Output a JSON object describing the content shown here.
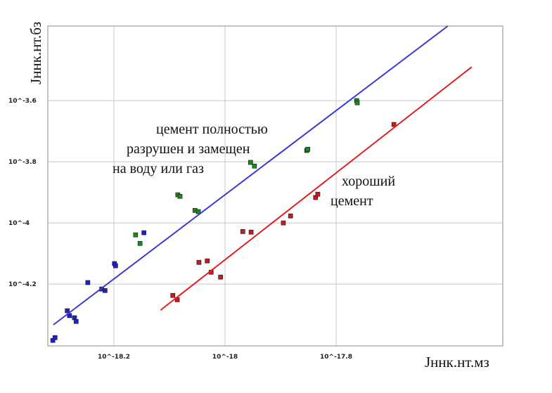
{
  "chart_data": {
    "type": "scatter",
    "x_label": "Jннк.нт.мз",
    "y_label": "Jннк.нт.бз",
    "xlim": [
      -18.319,
      -17.5
    ],
    "ylim": [
      -4.402,
      -3.356
    ],
    "xticks": [
      {
        "value": -18.2,
        "label": "10^-18.2"
      },
      {
        "value": -18,
        "label": "10^-18"
      },
      {
        "value": -17.8,
        "label": "10^-17.8"
      }
    ],
    "yticks": [
      {
        "value": -4.2,
        "label": "10^-4.2"
      },
      {
        "value": -4,
        "label": "10^-4"
      },
      {
        "value": -3.8,
        "label": "10^-3.8"
      },
      {
        "value": -3.6,
        "label": "10^-3.6"
      }
    ],
    "grid": true,
    "series": [
      {
        "mode": "markers",
        "color": "#1f1fd0",
        "x": [
          -18.31,
          -18.306,
          -18.284,
          -18.28,
          -18.271,
          -18.268,
          -18.247,
          -18.222,
          -18.216,
          -18.199,
          -18.197,
          -18.146
        ],
        "values": [
          -4.384,
          -4.375,
          -4.287,
          -4.303,
          -4.31,
          -4.322,
          -4.195,
          -4.216,
          -4.221,
          -4.133,
          -4.14,
          -4.032
        ]
      },
      {
        "mode": "markers",
        "color": "#1a8a1a",
        "x": [
          -18.161,
          -18.153,
          -18.085,
          -18.081,
          -18.054,
          -18.048,
          -17.954,
          -17.947,
          -17.853,
          -17.851,
          -17.763,
          -17.762
        ],
        "values": [
          -4.039,
          -4.067,
          -3.908,
          -3.913,
          -3.959,
          -3.963,
          -3.802,
          -3.814,
          -3.763,
          -3.759,
          -3.6,
          -3.607
        ]
      },
      {
        "mode": "markers",
        "color": "#d01818",
        "x": [
          -18.094,
          -18.086,
          -18.047,
          -18.032,
          -18.025,
          -18.008,
          -17.968,
          -17.953,
          -17.895,
          -17.882,
          -17.837,
          -17.833,
          -17.696
        ],
        "values": [
          -4.237,
          -4.251,
          -4.129,
          -4.124,
          -4.161,
          -4.177,
          -4.028,
          -4.03,
          -4.0,
          -3.977,
          -3.917,
          -3.906,
          -3.678
        ]
      },
      {
        "mode": "line",
        "color": "#3a3ad8",
        "x": [
          -18.309,
          -17.599
        ],
        "values": [
          -4.333,
          -3.356
        ]
      },
      {
        "mode": "line",
        "color": "#e02020",
        "x": [
          -18.116,
          -17.556
        ],
        "values": [
          -4.285,
          -3.49
        ]
      }
    ],
    "annotations": [
      {
        "lines": [
          "цемент полностью",
          "разрушен и замещен",
          "на воду или газ"
        ]
      },
      {
        "lines": [
          "хороший",
          "цемент"
        ]
      }
    ]
  }
}
